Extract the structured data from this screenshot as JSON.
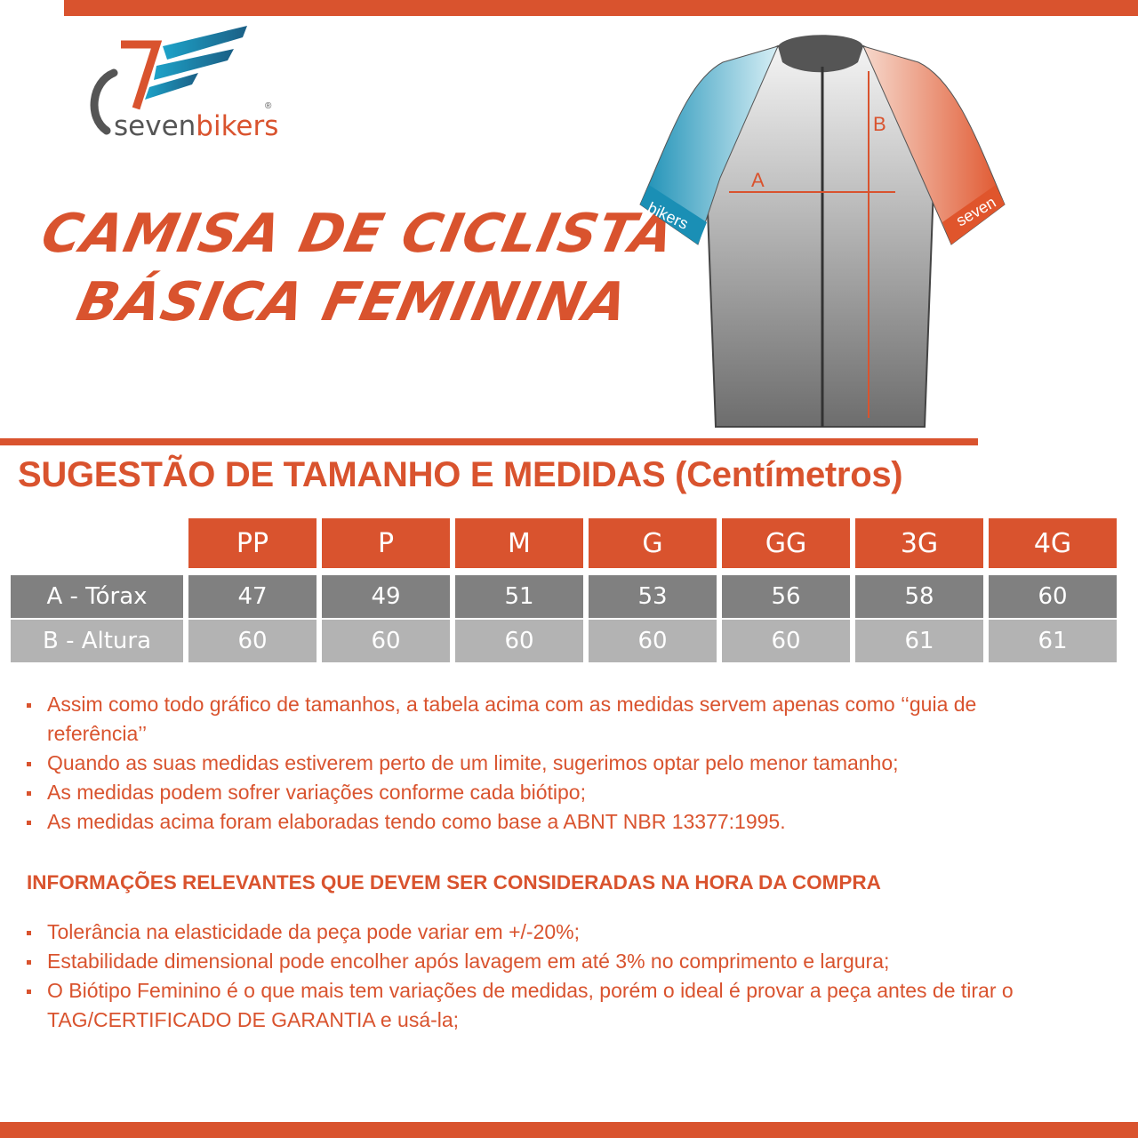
{
  "brand": {
    "name_part1": "seven",
    "name_part2": "bikers",
    "registered": "®"
  },
  "title": {
    "line1": "CAMISA DE CICLISTA",
    "line2": "BÁSICA FEMININA"
  },
  "jersey": {
    "label_a": "A",
    "label_b": "B",
    "sleeve_left_text": "bikers",
    "sleeve_right_text": "seven"
  },
  "size_chart": {
    "heading": "SUGESTÃO DE TAMANHO E MEDIDAS (Centímetros)",
    "sizes": [
      "PP",
      "P",
      "M",
      "G",
      "GG",
      "3G",
      "4G"
    ],
    "rows": [
      {
        "label": "A - Tórax",
        "values": [
          "47",
          "49",
          "51",
          "53",
          "56",
          "58",
          "60"
        ]
      },
      {
        "label": "B - Altura",
        "values": [
          "60",
          "60",
          "60",
          "60",
          "60",
          "61",
          "61"
        ]
      }
    ]
  },
  "notes": [
    "Assim como todo gráfico de tamanhos, a tabela acima com as medidas servem apenas como ‘‘guia de referência’’",
    "Quando as suas medidas estiverem perto de um limite, sugerimos optar pelo menor tamanho;",
    "As medidas podem sofrer variações conforme cada biótipo;",
    "As medidas acima foram elaboradas tendo como base a ABNT NBR 13377:1995."
  ],
  "info": {
    "heading": "INFORMAÇÕES RELEVANTES QUE DEVEM SER CONSIDERADAS NA HORA DA COMPRA",
    "items": [
      "Tolerância na elasticidade da peça pode variar em +/-20%;",
      "Estabilidade dimensional pode encolher após lavagem em até 3% no comprimento e largura;",
      "O Biótipo Feminino é o que mais tem variações de medidas, porém o ideal é provar a peça antes de tirar o TAG/CERTIFICADO DE GARANTIA e usá-la;"
    ]
  },
  "colors": {
    "accent": "#d9532e",
    "row_a": "#808080",
    "row_b": "#b3b3b3",
    "blue": "#1a8fb5"
  }
}
